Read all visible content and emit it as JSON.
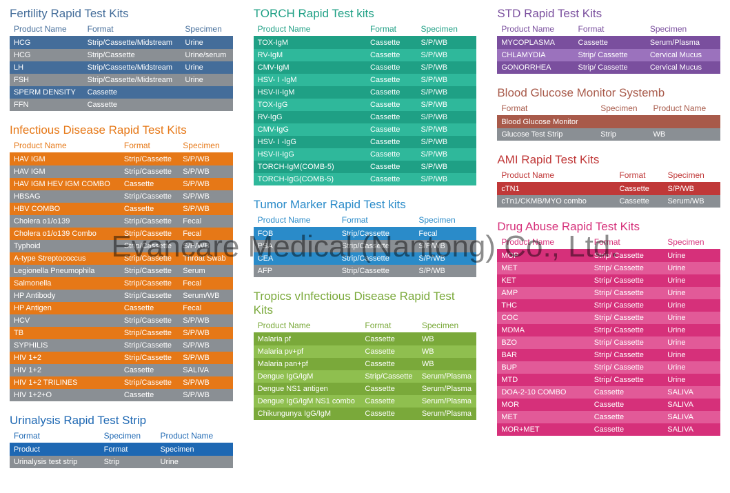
{
  "watermark": "Evancare Medical (Nantong) Co., Ltd.",
  "columns": {
    "product": "Product Name",
    "format": "Format",
    "specimen": "Specimen"
  },
  "sections": {
    "fertility": {
      "title": "Fertility Rapid Test Kits",
      "theme": {
        "header": "#446d9a",
        "rowA": "#446d9a",
        "rowB": "#8a8f94"
      },
      "headers": [
        "product",
        "format",
        "specimen"
      ],
      "rows": [
        [
          "HCG",
          "Strip/Cassette/Midstream",
          "Urine"
        ],
        [
          "HCG",
          "Strip/Cassette",
          "Urine/serum"
        ],
        [
          "LH",
          "Strip/Cassette/Midstream",
          "Urine"
        ],
        [
          "FSH",
          "Strip/Cassette/Midstream",
          "Urine"
        ],
        [
          "SPERM DENSITY",
          "Cassette",
          ""
        ],
        [
          "FFN",
          "Cassette",
          ""
        ]
      ]
    },
    "infectious": {
      "title": "Infectious Disease Rapid Test Kits",
      "theme": {
        "header": "#e67817",
        "rowA": "#e67817",
        "rowB": "#8a8f94"
      },
      "headers": [
        "product",
        "format",
        "specimen"
      ],
      "rows": [
        [
          "HAV IGM",
          "Strip/Cassette",
          "S/P/WB"
        ],
        [
          "HAV IGM",
          "Strip/Cassette",
          "S/P/WB"
        ],
        [
          "HAV IGM HEV IGM COMBO",
          "Cassette",
          "S/P/WB"
        ],
        [
          "HBSAG",
          "Strip/Cassette",
          "S/P/WB"
        ],
        [
          "HBV COMBO",
          "Cassette",
          "S/P/WB"
        ],
        [
          "Cholera o1/o139",
          "Strip/Cassette",
          "Fecal"
        ],
        [
          "Cholera o1/o139 Combo",
          "Strip/Cassette",
          "Fecal"
        ],
        [
          "Typhoid",
          "Strip/Cassette",
          "S/P/WB"
        ],
        [
          "A-type Streptococcus",
          "Strip/Cassette",
          "Throat Swab"
        ],
        [
          "Legionella Pneumophila",
          "Strip/Cassette",
          "Serum"
        ],
        [
          "Salmonella",
          "Strip/Cassette",
          "Fecal"
        ],
        [
          "HP Antibody",
          "Strip/Cassette",
          "Serum/WB"
        ],
        [
          "HP Antigen",
          "Cassette",
          "Fecal"
        ],
        [
          "HCV",
          "Strip/Cassette",
          "S/P/WB"
        ],
        [
          "TB",
          "Strip/Cassette",
          "S/P/WB"
        ],
        [
          "SYPHILIS",
          "Strip/Cassette",
          "S/P/WB"
        ],
        [
          "HIV 1+2",
          "Strip/Cassette",
          "S/P/WB"
        ],
        [
          "HIV 1+2",
          "Cassette",
          "SALIVA"
        ],
        [
          "HIV 1+2 TRILINES",
          "Strip/Cassette",
          "S/P/WB"
        ],
        [
          "HIV 1+2+O",
          "Cassette",
          "S/P/WB"
        ]
      ]
    },
    "urinalysis": {
      "title": "Urinalysis Rapid Test Strip",
      "theme": {
        "header": "#1e68b3",
        "rowA": "#1e68b3",
        "rowB": "#8a8f94"
      },
      "headers": [
        "format",
        "specimen",
        "product"
      ],
      "rows": [
        [
          "Product",
          "Format",
          "Specimen"
        ],
        [
          "Urinalysis test strip",
          "Strip",
          "Urine"
        ]
      ]
    },
    "torch": {
      "title": "TORCH Rapid Test kits",
      "theme": {
        "header": "#1fa085",
        "rowA": "#1fa085",
        "rowB": "#2fb89b"
      },
      "headers": [
        "product",
        "format",
        "specimen"
      ],
      "rows": [
        [
          "TOX-IgM",
          "Cassette",
          "S/P/WB"
        ],
        [
          "RV-IgM",
          "Cassette",
          "S/P/WB"
        ],
        [
          "CMV-IgM",
          "Cassette",
          "S/P/WB"
        ],
        [
          "HSV- I -IgM",
          "Cassette",
          "S/P/WB"
        ],
        [
          "HSV-II-IgM",
          "Cassette",
          "S/P/WB"
        ],
        [
          "TOX-IgG",
          "Cassette",
          "S/P/WB"
        ],
        [
          "RV-IgG",
          "Cassette",
          "S/P/WB"
        ],
        [
          "CMV-IgG",
          "Cassette",
          "S/P/WB"
        ],
        [
          "HSV- I -IgG",
          "Cassette",
          "S/P/WB"
        ],
        [
          "HSV-II-IgG",
          "Cassette",
          "S/P/WB"
        ],
        [
          "TORCH-IgM(COMB-5)",
          "Cassette",
          "S/P/WB"
        ],
        [
          "TORCH-IgG(COMB-5)",
          "Cassette",
          "S/P/WB"
        ]
      ]
    },
    "tumor": {
      "title": "Tumor Marker Rapid Test kits",
      "theme": {
        "header": "#2a8bc9",
        "rowA": "#2a8bc9",
        "rowB": "#8a8f94"
      },
      "headers": [
        "product",
        "format",
        "specimen"
      ],
      "rows": [
        [
          "FOB",
          "Strip/Cassette",
          "Fecal"
        ],
        [
          "PSA",
          "Strip/Cassette",
          "S/P/WB"
        ],
        [
          "CEA",
          "Strip/Cassette",
          "S/P/WB"
        ],
        [
          "AFP",
          "Strip/Cassette",
          "S/P/WB"
        ]
      ]
    },
    "tropics": {
      "title": "Tropics vInfectious Disease Rapid Test Kits",
      "theme": {
        "header": "#7aa93a",
        "rowA": "#7aa93a",
        "rowB": "#8fbf4f"
      },
      "headers": [
        "product",
        "format",
        "specimen"
      ],
      "rows": [
        [
          "Malaria pf",
          "Cassette",
          "WB"
        ],
        [
          "Malaria pv+pf",
          "Cassette",
          "WB"
        ],
        [
          "Malaria pan+pf",
          "Cassette",
          "WB"
        ],
        [
          "Dengue IgG/IgM",
          "Strip/Cassette",
          "Serum/Plasma"
        ],
        [
          "Dengue NS1 antigen",
          "Cassette",
          "Serum/Plasma"
        ],
        [
          "Dengue IgG/IgM NS1 combo",
          "Cassette",
          "Serum/Plasma"
        ],
        [
          "Chikungunya IgG/IgM",
          "Cassette",
          "Serum/Plasma"
        ]
      ]
    },
    "std": {
      "title": "STD Rapid Test Kits",
      "theme": {
        "header": "#7a4f9e",
        "rowA": "#7a4f9e",
        "rowB": "#9b72bd"
      },
      "headers": [
        "product",
        "format",
        "specimen"
      ],
      "rows": [
        [
          "MYCOPLASMA",
          "Cassette",
          "Serum/Plasma"
        ],
        [
          "CHLAMYDIA",
          "Strip/ Cassette",
          "Cervical Mucus"
        ],
        [
          "GONORRHEA",
          "Strip/ Cassette",
          "Cervical Mucus"
        ]
      ]
    },
    "glucose": {
      "title": "Blood Glucose Monitor Systemb",
      "theme": {
        "header": "#a85a4a",
        "rowA": "#a85a4a",
        "rowB": "#8a8f94"
      },
      "headers": [
        "format",
        "specimen",
        "product"
      ],
      "rows": [
        [
          "Blood Glucose Monitor",
          "",
          ""
        ],
        [
          "Glucose Test Strip",
          "Strip",
          "WB"
        ]
      ]
    },
    "ami": {
      "title": "AMI  Rapid Test Kits",
      "theme": {
        "header": "#c03838",
        "rowA": "#c03838",
        "rowB": "#8a8f94"
      },
      "headers": [
        "product",
        "format",
        "specimen"
      ],
      "rows": [
        [
          "cTN1",
          "Cassette",
          "S/P/WB"
        ],
        [
          "cTn1/CKMB/MYO combo",
          "Cassette",
          "Serum/WB"
        ]
      ]
    },
    "drug": {
      "title": "Drug Abuse Rapid Test Kits",
      "theme": {
        "header": "#d6307a",
        "rowA": "#d6307a",
        "rowB": "#e25a98"
      },
      "headers": [
        "product",
        "format",
        "specimen"
      ],
      "rows": [
        [
          "MOP",
          "Strip/ Cassette",
          "Urine"
        ],
        [
          "MET",
          "Strip/ Cassette",
          "Urine"
        ],
        [
          "KET",
          "Strip/ Cassette",
          "Urine"
        ],
        [
          "AMP",
          "Strip/ Cassette",
          "Urine"
        ],
        [
          "THC",
          "Strip/ Cassette",
          "Urine"
        ],
        [
          "COC",
          "Strip/ Cassette",
          "Urine"
        ],
        [
          "MDMA",
          "Strip/ Cassette",
          "Urine"
        ],
        [
          "BZO",
          "Strip/ Cassette",
          "Urine"
        ],
        [
          "BAR",
          "Strip/ Cassette",
          "Urine"
        ],
        [
          "BUP",
          "Strip/ Cassette",
          "Urine"
        ],
        [
          "MTD",
          "Strip/ Cassette",
          "Urine"
        ],
        [
          "DOA-2-10 COMBO",
          "Cassette",
          "SALIVA"
        ],
        [
          "MOR",
          "Cassette",
          "SALIVA"
        ],
        [
          "MET",
          "Cassette",
          "SALIVA"
        ],
        [
          "MOR+MET",
          "Cassette",
          "SALIVA"
        ]
      ]
    }
  },
  "layout": [
    [
      "fertility",
      "infectious",
      "urinalysis"
    ],
    [
      "torch",
      "tumor",
      "tropics"
    ],
    [
      "std",
      "glucose",
      "ami",
      "drug"
    ]
  ]
}
